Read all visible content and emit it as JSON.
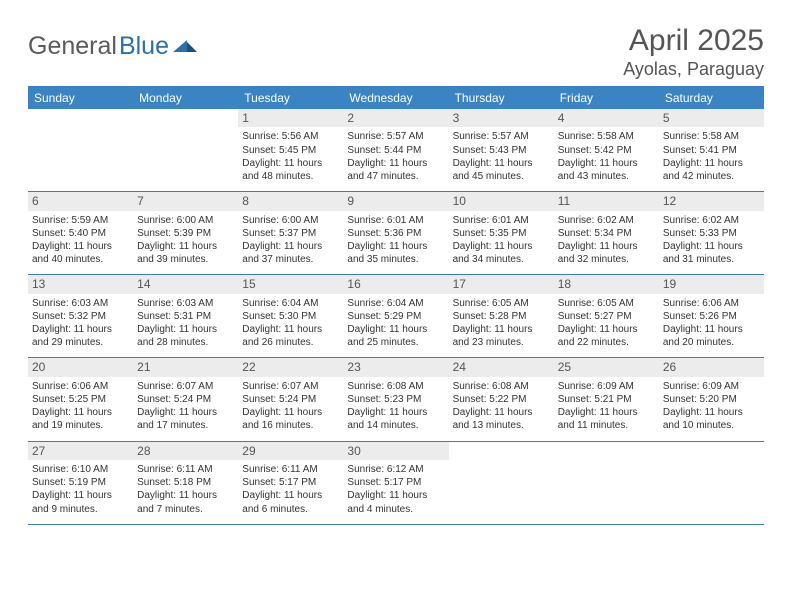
{
  "brand": {
    "part1": "General",
    "part2": "Blue"
  },
  "title": "April 2025",
  "location": "Ayolas, Paraguay",
  "colors": {
    "header_bg": "#3b84c4",
    "rule": "#3b7bbf",
    "daynum_bg": "#ececec",
    "text": "#333333",
    "title_text": "#555555"
  },
  "weekdays": [
    "Sunday",
    "Monday",
    "Tuesday",
    "Wednesday",
    "Thursday",
    "Friday",
    "Saturday"
  ],
  "leading_blanks": 2,
  "days": [
    {
      "n": 1,
      "sr": "5:56 AM",
      "ss": "5:45 PM",
      "dl": "11 hours and 48 minutes."
    },
    {
      "n": 2,
      "sr": "5:57 AM",
      "ss": "5:44 PM",
      "dl": "11 hours and 47 minutes."
    },
    {
      "n": 3,
      "sr": "5:57 AM",
      "ss": "5:43 PM",
      "dl": "11 hours and 45 minutes."
    },
    {
      "n": 4,
      "sr": "5:58 AM",
      "ss": "5:42 PM",
      "dl": "11 hours and 43 minutes."
    },
    {
      "n": 5,
      "sr": "5:58 AM",
      "ss": "5:41 PM",
      "dl": "11 hours and 42 minutes."
    },
    {
      "n": 6,
      "sr": "5:59 AM",
      "ss": "5:40 PM",
      "dl": "11 hours and 40 minutes."
    },
    {
      "n": 7,
      "sr": "6:00 AM",
      "ss": "5:39 PM",
      "dl": "11 hours and 39 minutes."
    },
    {
      "n": 8,
      "sr": "6:00 AM",
      "ss": "5:37 PM",
      "dl": "11 hours and 37 minutes."
    },
    {
      "n": 9,
      "sr": "6:01 AM",
      "ss": "5:36 PM",
      "dl": "11 hours and 35 minutes."
    },
    {
      "n": 10,
      "sr": "6:01 AM",
      "ss": "5:35 PM",
      "dl": "11 hours and 34 minutes."
    },
    {
      "n": 11,
      "sr": "6:02 AM",
      "ss": "5:34 PM",
      "dl": "11 hours and 32 minutes."
    },
    {
      "n": 12,
      "sr": "6:02 AM",
      "ss": "5:33 PM",
      "dl": "11 hours and 31 minutes."
    },
    {
      "n": 13,
      "sr": "6:03 AM",
      "ss": "5:32 PM",
      "dl": "11 hours and 29 minutes."
    },
    {
      "n": 14,
      "sr": "6:03 AM",
      "ss": "5:31 PM",
      "dl": "11 hours and 28 minutes."
    },
    {
      "n": 15,
      "sr": "6:04 AM",
      "ss": "5:30 PM",
      "dl": "11 hours and 26 minutes."
    },
    {
      "n": 16,
      "sr": "6:04 AM",
      "ss": "5:29 PM",
      "dl": "11 hours and 25 minutes."
    },
    {
      "n": 17,
      "sr": "6:05 AM",
      "ss": "5:28 PM",
      "dl": "11 hours and 23 minutes."
    },
    {
      "n": 18,
      "sr": "6:05 AM",
      "ss": "5:27 PM",
      "dl": "11 hours and 22 minutes."
    },
    {
      "n": 19,
      "sr": "6:06 AM",
      "ss": "5:26 PM",
      "dl": "11 hours and 20 minutes."
    },
    {
      "n": 20,
      "sr": "6:06 AM",
      "ss": "5:25 PM",
      "dl": "11 hours and 19 minutes."
    },
    {
      "n": 21,
      "sr": "6:07 AM",
      "ss": "5:24 PM",
      "dl": "11 hours and 17 minutes."
    },
    {
      "n": 22,
      "sr": "6:07 AM",
      "ss": "5:24 PM",
      "dl": "11 hours and 16 minutes."
    },
    {
      "n": 23,
      "sr": "6:08 AM",
      "ss": "5:23 PM",
      "dl": "11 hours and 14 minutes."
    },
    {
      "n": 24,
      "sr": "6:08 AM",
      "ss": "5:22 PM",
      "dl": "11 hours and 13 minutes."
    },
    {
      "n": 25,
      "sr": "6:09 AM",
      "ss": "5:21 PM",
      "dl": "11 hours and 11 minutes."
    },
    {
      "n": 26,
      "sr": "6:09 AM",
      "ss": "5:20 PM",
      "dl": "11 hours and 10 minutes."
    },
    {
      "n": 27,
      "sr": "6:10 AM",
      "ss": "5:19 PM",
      "dl": "11 hours and 9 minutes."
    },
    {
      "n": 28,
      "sr": "6:11 AM",
      "ss": "5:18 PM",
      "dl": "11 hours and 7 minutes."
    },
    {
      "n": 29,
      "sr": "6:11 AM",
      "ss": "5:17 PM",
      "dl": "11 hours and 6 minutes."
    },
    {
      "n": 30,
      "sr": "6:12 AM",
      "ss": "5:17 PM",
      "dl": "11 hours and 4 minutes."
    }
  ],
  "labels": {
    "sunrise": "Sunrise:",
    "sunset": "Sunset:",
    "daylight": "Daylight:"
  }
}
